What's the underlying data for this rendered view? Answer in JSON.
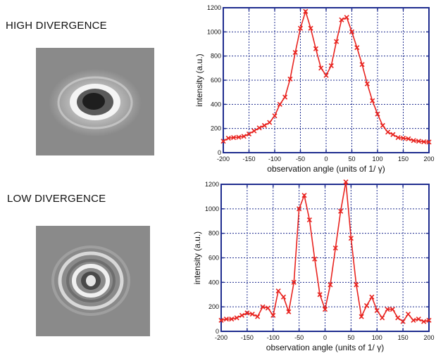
{
  "panels": [
    {
      "label": "HIGH DIVERGENCE"
    },
    {
      "label": "LOW DIVERGENCE"
    }
  ],
  "colors": {
    "frame": "#1f2d8f",
    "grid": "#1f2d8f",
    "series": "#e8231f"
  },
  "chart_data": [
    {
      "type": "line",
      "xlabel": "observation angle (units of 1/ γ)",
      "ylabel": "intensity (a.u.)",
      "xlim": [
        -200,
        200
      ],
      "ylim": [
        0,
        1200
      ],
      "xticks": [
        -200,
        -150,
        -100,
        -50,
        0,
        50,
        100,
        150,
        200
      ],
      "yticks": [
        0,
        200,
        400,
        600,
        800,
        1000,
        1200
      ],
      "grid": true,
      "series": [
        {
          "marker": "x",
          "x": [
            -200,
            -190,
            -180,
            -170,
            -160,
            -150,
            -140,
            -130,
            -120,
            -110,
            -100,
            -90,
            -80,
            -70,
            -60,
            -50,
            -40,
            -30,
            -20,
            -10,
            0,
            10,
            20,
            30,
            40,
            50,
            60,
            70,
            80,
            90,
            100,
            110,
            120,
            130,
            140,
            150,
            160,
            170,
            180,
            190,
            200
          ],
          "y": [
            95,
            120,
            125,
            128,
            135,
            155,
            180,
            205,
            225,
            250,
            305,
            400,
            460,
            610,
            830,
            1030,
            1170,
            1030,
            860,
            700,
            640,
            720,
            920,
            1100,
            1120,
            1000,
            870,
            730,
            570,
            430,
            320,
            225,
            170,
            150,
            125,
            120,
            115,
            100,
            95,
            90,
            88
          ]
        }
      ]
    },
    {
      "type": "line",
      "xlabel": "observation angle (units of 1/ γ)",
      "ylabel": "intensity (a.u.)",
      "xlim": [
        -200,
        200
      ],
      "ylim": [
        0,
        1200
      ],
      "xticks": [
        -200,
        -150,
        -100,
        -50,
        0,
        50,
        100,
        150,
        200
      ],
      "yticks": [
        0,
        200,
        400,
        600,
        800,
        1000,
        1200
      ],
      "grid": true,
      "series": [
        {
          "marker": "x",
          "x": [
            -200,
            -190,
            -180,
            -170,
            -160,
            -150,
            -140,
            -130,
            -120,
            -110,
            -100,
            -90,
            -80,
            -70,
            -60,
            -50,
            -40,
            -30,
            -20,
            -10,
            0,
            10,
            20,
            30,
            40,
            50,
            60,
            70,
            80,
            90,
            100,
            110,
            120,
            130,
            140,
            150,
            160,
            170,
            180,
            190,
            200
          ],
          "y": [
            90,
            100,
            100,
            110,
            130,
            150,
            140,
            120,
            200,
            190,
            130,
            330,
            280,
            160,
            400,
            1000,
            1110,
            910,
            590,
            300,
            180,
            380,
            680,
            980,
            1230,
            760,
            380,
            120,
            210,
            280,
            170,
            110,
            180,
            180,
            110,
            80,
            140,
            90,
            100,
            80,
            90
          ]
        }
      ]
    }
  ]
}
